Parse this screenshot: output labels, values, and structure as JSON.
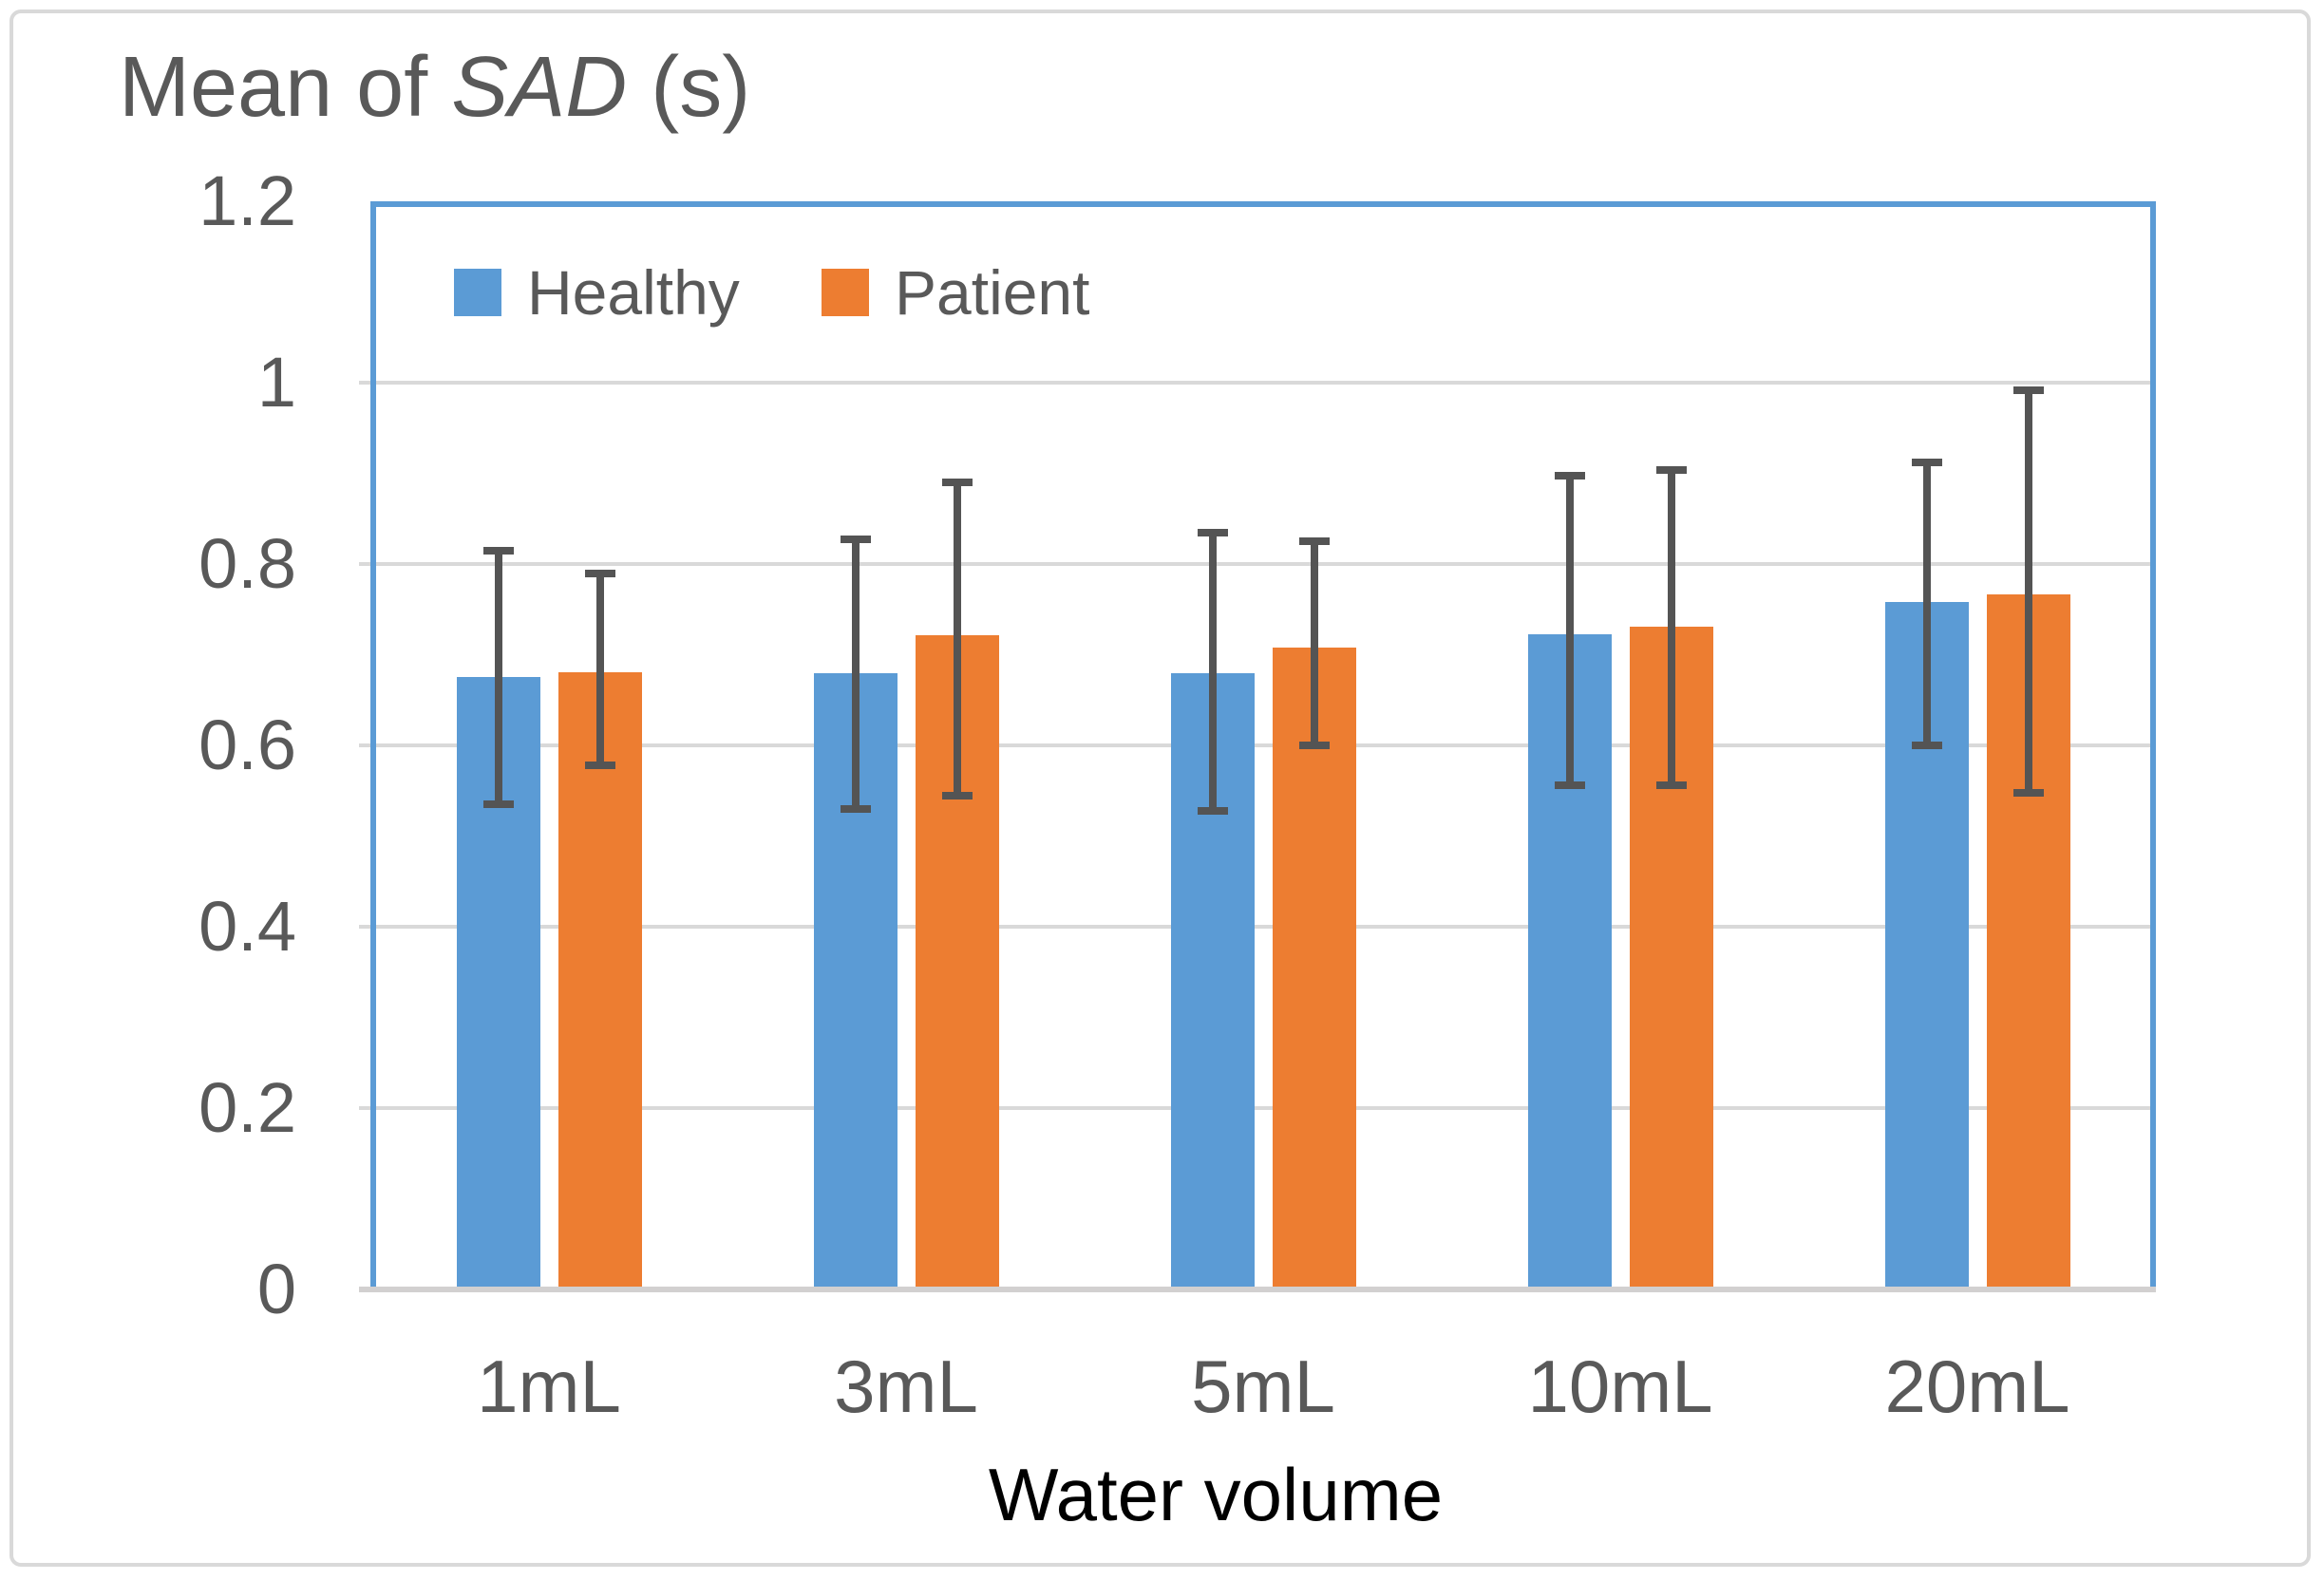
{
  "figure": {
    "title": {
      "prefix": "Mean of ",
      "italic": "SAD",
      "suffix": " (s)"
    }
  },
  "chart_data": {
    "type": "bar",
    "title": "Mean of SAD (s)",
    "xlabel": "Water volume",
    "categories": [
      "1mL",
      "3mL",
      "5mL",
      "10mL",
      "20mL"
    ],
    "series": [
      {
        "name": "Healthy",
        "color": "#5B9BD5",
        "values": [
          0.675,
          0.68,
          0.68,
          0.723,
          0.758
        ],
        "error_upper": [
          0.815,
          0.827,
          0.835,
          0.897,
          0.912
        ],
        "error_lower": [
          0.535,
          0.53,
          0.528,
          0.556,
          0.6
        ]
      },
      {
        "name": "Patient",
        "color": "#ED7D31",
        "values": [
          0.681,
          0.722,
          0.708,
          0.731,
          0.767
        ],
        "error_upper": [
          0.79,
          0.89,
          0.825,
          0.904,
          0.992
        ],
        "error_lower": [
          0.578,
          0.545,
          0.6,
          0.556,
          0.548
        ]
      }
    ],
    "ylim": [
      0,
      1.2
    ],
    "yticks": [
      {
        "label": "0",
        "value": 0
      },
      {
        "label": "0.2",
        "value": 0.2
      },
      {
        "label": "0.4",
        "value": 0.4
      },
      {
        "label": "0.6",
        "value": 0.6
      },
      {
        "label": "0.8",
        "value": 0.8
      },
      {
        "label": "1",
        "value": 1
      },
      {
        "label": "1.2",
        "value": 1.2
      }
    ],
    "grid": true,
    "legend_position": "inside-top-left",
    "colors": {
      "plot_border": "#5B9BD5",
      "gridline": "#D9D9D9",
      "axis_line": "#D2D0D0",
      "error_bar": "#545454",
      "tick_label": "#595959",
      "title_text": "#595959",
      "xlabel_text": "#000000"
    }
  }
}
